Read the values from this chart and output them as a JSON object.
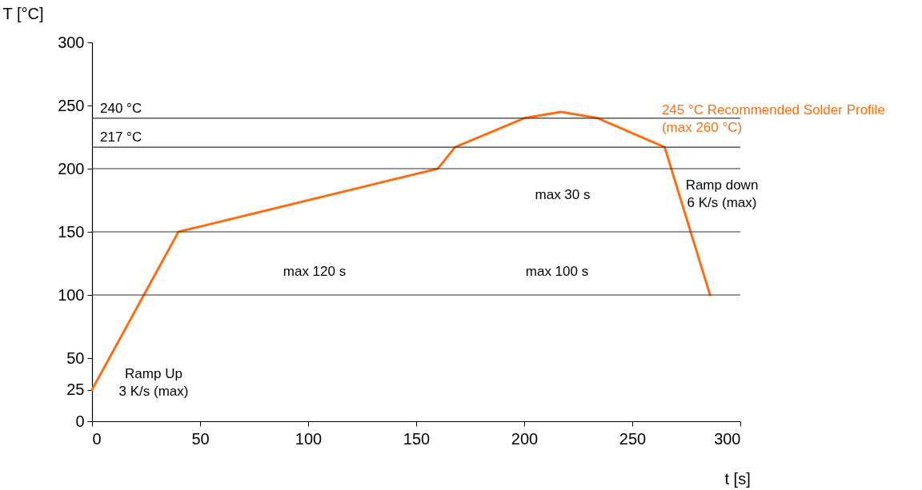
{
  "chart_data": {
    "type": "line",
    "xlabel": "t [s]",
    "ylabel": "T [°C]",
    "xlim": [
      0,
      300
    ],
    "xticks": [
      0,
      50,
      100,
      150,
      200,
      250,
      300
    ],
    "ylim": [
      0,
      300
    ],
    "yticks": [
      0,
      25,
      50,
      100,
      150,
      200,
      250,
      300
    ],
    "grid": false,
    "marker": "none",
    "line_style": "solid",
    "series": [
      {
        "name": "245 °C Recommended Solder Profile\n(max 260 °C)",
        "color": "#fa6e14",
        "x": [
          0,
          40,
          160,
          168,
          200,
          217,
          234,
          265,
          286
        ],
        "values": [
          25,
          150,
          200,
          217,
          240,
          245,
          240,
          217,
          100
        ]
      }
    ],
    "ref_lines": [
      {
        "axis": "y",
        "value": 240,
        "label": "240 °C"
      },
      {
        "axis": "y",
        "value": 217,
        "label": "217 °C"
      },
      {
        "axis": "y",
        "value": 200,
        "label": null
      },
      {
        "axis": "y",
        "value": 150,
        "label": null
      },
      {
        "axis": "y",
        "value": 100,
        "label": null
      }
    ],
    "annotations": [
      "Ramp Up\n3 K/s (max)",
      "max 120 s",
      "max 100 s",
      "max 30 s",
      "Ramp down\n6 K/s (max)"
    ]
  }
}
